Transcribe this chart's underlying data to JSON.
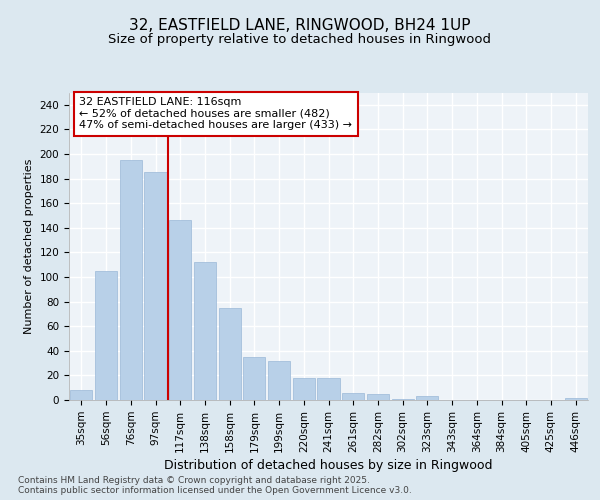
{
  "title": "32, EASTFIELD LANE, RINGWOOD, BH24 1UP",
  "subtitle": "Size of property relative to detached houses in Ringwood",
  "xlabel": "Distribution of detached houses by size in Ringwood",
  "ylabel": "Number of detached properties",
  "categories": [
    "35sqm",
    "56sqm",
    "76sqm",
    "97sqm",
    "117sqm",
    "138sqm",
    "158sqm",
    "179sqm",
    "199sqm",
    "220sqm",
    "241sqm",
    "261sqm",
    "282sqm",
    "302sqm",
    "323sqm",
    "343sqm",
    "364sqm",
    "384sqm",
    "405sqm",
    "425sqm",
    "446sqm"
  ],
  "values": [
    8,
    105,
    195,
    185,
    146,
    112,
    75,
    35,
    32,
    18,
    18,
    6,
    5,
    1,
    3,
    0,
    0,
    0,
    0,
    0,
    2
  ],
  "bar_color": "#b8d0e8",
  "bar_edge_color": "#9ab8d8",
  "vline_color": "#cc0000",
  "annotation_text": "32 EASTFIELD LANE: 116sqm\n← 52% of detached houses are smaller (482)\n47% of semi-detached houses are larger (433) →",
  "annotation_box_color": "#ffffff",
  "annotation_box_edge": "#cc0000",
  "ylim": [
    0,
    250
  ],
  "yticks": [
    0,
    20,
    40,
    60,
    80,
    100,
    120,
    140,
    160,
    180,
    200,
    220,
    240
  ],
  "footer_text": "Contains HM Land Registry data © Crown copyright and database right 2025.\nContains public sector information licensed under the Open Government Licence v3.0.",
  "bg_color": "#dce8f0",
  "plot_bg_color": "#eef3f8",
  "grid_color": "#ffffff",
  "title_fontsize": 11,
  "subtitle_fontsize": 9.5,
  "xlabel_fontsize": 9,
  "ylabel_fontsize": 8,
  "tick_fontsize": 7.5,
  "annotation_fontsize": 8,
  "footer_fontsize": 6.5
}
